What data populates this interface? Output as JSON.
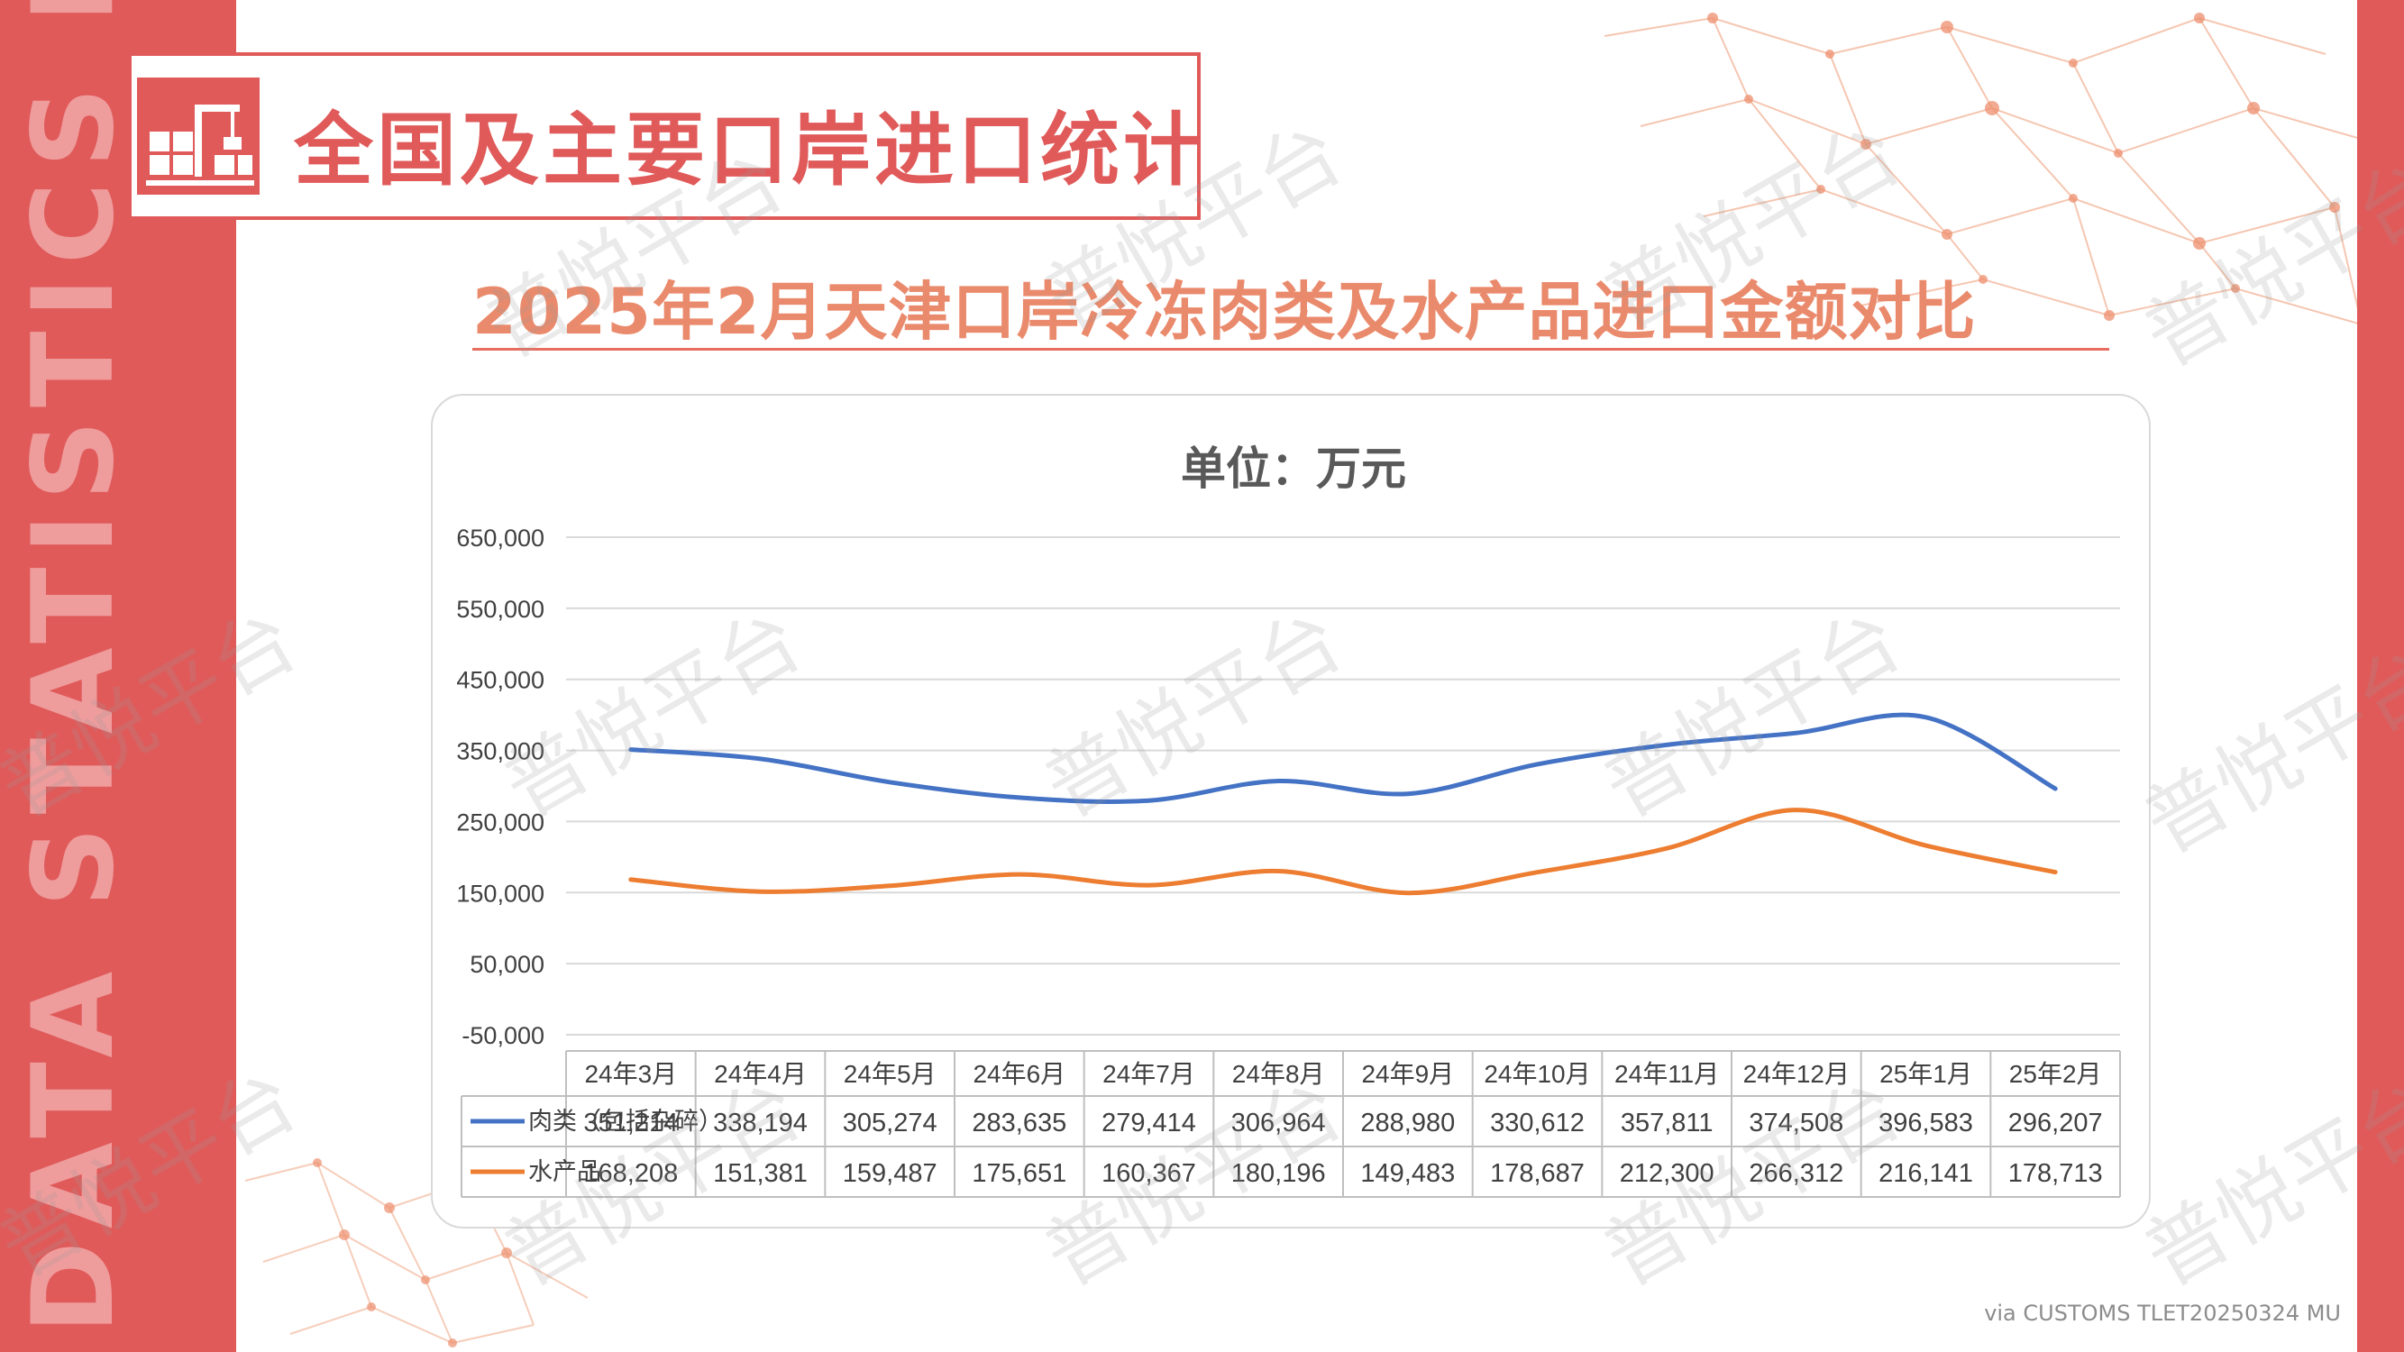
{
  "header": {
    "title": "全国及主要口岸进口统计"
  },
  "side_label": "DATA STATISTICS REPORT",
  "subtitle": "2025年2月天津口岸冷冻肉类及水产品进口金额对比",
  "watermark_text": "普悦平台",
  "source_note": "via CUSTOMS TLET20250324 MU",
  "colors": {
    "accent": "#e05a5a",
    "meat": "#4472c4",
    "aquatic": "#ed7d31"
  },
  "chart_data": {
    "type": "line",
    "title": "单位：万元",
    "categories": [
      "24年3月",
      "24年4月",
      "24年5月",
      "24年6月",
      "24年7月",
      "24年8月",
      "24年9月",
      "24年10月",
      "24年11月",
      "24年12月",
      "25年1月",
      "25年2月"
    ],
    "series": [
      {
        "name": "肉类（包括杂碎）",
        "values": [
          351214,
          338194,
          305274,
          283635,
          279414,
          306964,
          288980,
          330612,
          357811,
          374508,
          396583,
          296207
        ],
        "labels": [
          "351,214",
          "338,194",
          "305,274",
          "283,635",
          "279,414",
          "306,964",
          "288,980",
          "330,612",
          "357,811",
          "374,508",
          "396,583",
          "296,207"
        ]
      },
      {
        "name": "水产品",
        "values": [
          168208,
          151381,
          159487,
          175651,
          160367,
          180196,
          149483,
          178687,
          212300,
          266312,
          216141,
          178713
        ],
        "labels": [
          "168,208",
          "151,381",
          "159,487",
          "175,651",
          "160,367",
          "180,196",
          "149,483",
          "178,687",
          "212,300",
          "266,312",
          "216,141",
          "178,713"
        ]
      }
    ],
    "y_ticks": [
      650000,
      550000,
      450000,
      350000,
      250000,
      150000,
      50000,
      -50000
    ],
    "y_tick_labels": [
      "650,000",
      "550,000",
      "450,000",
      "350,000",
      "250,000",
      "150,000",
      "50,000",
      "-50,000"
    ],
    "ylim": [
      -50000,
      650000
    ],
    "grid": true,
    "legend": "data-table"
  }
}
